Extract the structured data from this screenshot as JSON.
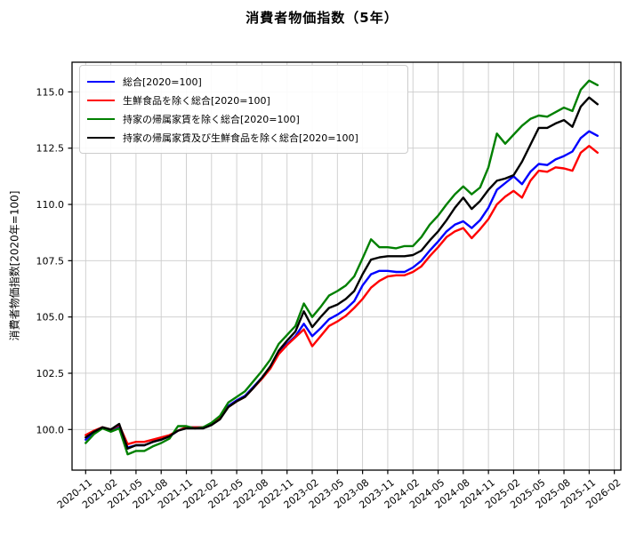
{
  "figure": {
    "title": "消費者物価指数（5年）"
  },
  "chart_data": {
    "type": "line",
    "title": "消費者物価指数（5年）",
    "xlabel": "",
    "ylabel": "消費者物価指数[2020年=100]",
    "grid": true,
    "legend_position": "upper left",
    "ylim": [
      98.2,
      116.3
    ],
    "yticks": [
      100.0,
      102.5,
      105.0,
      107.5,
      110.0,
      112.5,
      115.0
    ],
    "xticks": [
      "2020-11",
      "2021-02",
      "2021-05",
      "2021-08",
      "2021-11",
      "2022-02",
      "2022-05",
      "2022-08",
      "2022-11",
      "2023-02",
      "2023-05",
      "2023-08",
      "2023-11",
      "2024-02",
      "2024-05",
      "2024-08",
      "2024-11",
      "2025-02",
      "2025-05",
      "2025-08",
      "2025-11",
      "2026-02"
    ],
    "x": [
      "2020-11",
      "2020-12",
      "2021-01",
      "2021-02",
      "2021-03",
      "2021-04",
      "2021-05",
      "2021-06",
      "2021-07",
      "2021-08",
      "2021-09",
      "2021-10",
      "2021-11",
      "2021-12",
      "2022-01",
      "2022-02",
      "2022-03",
      "2022-04",
      "2022-05",
      "2022-06",
      "2022-07",
      "2022-08",
      "2022-09",
      "2022-10",
      "2022-11",
      "2022-12",
      "2023-01",
      "2023-02",
      "2023-03",
      "2023-04",
      "2023-05",
      "2023-06",
      "2023-07",
      "2023-08",
      "2023-09",
      "2023-10",
      "2023-11",
      "2023-12",
      "2024-01",
      "2024-02",
      "2024-03",
      "2024-04",
      "2024-05",
      "2024-06",
      "2024-07",
      "2024-08",
      "2024-09",
      "2024-10",
      "2024-11",
      "2024-12",
      "2025-01",
      "2025-02",
      "2025-03",
      "2025-04",
      "2025-05",
      "2025-06",
      "2025-07",
      "2025-08",
      "2025-09",
      "2025-10",
      "2025-11",
      "2025-12"
    ],
    "series": [
      {
        "name": "総合[2020=100]",
        "color": "#0000ff",
        "values": [
          99.55,
          99.9,
          100.1,
          99.95,
          100.15,
          99.2,
          99.3,
          99.3,
          99.45,
          99.55,
          99.7,
          99.95,
          100.1,
          100.1,
          100.1,
          100.25,
          100.5,
          101.05,
          101.3,
          101.5,
          101.9,
          102.3,
          102.75,
          103.4,
          103.8,
          104.15,
          104.7,
          104.15,
          104.5,
          104.9,
          105.1,
          105.35,
          105.7,
          106.4,
          106.9,
          107.05,
          107.05,
          107.0,
          107.0,
          107.2,
          107.5,
          107.95,
          108.35,
          108.8,
          109.1,
          109.25,
          108.95,
          109.3,
          109.85,
          110.65,
          110.95,
          111.25,
          110.9,
          111.45,
          111.8,
          111.75,
          112.0,
          112.15,
          112.35,
          112.95,
          113.25,
          113.05
        ]
      },
      {
        "name": "生鮮食品を除く総合[2020=100]",
        "color": "#ff0000",
        "values": [
          99.75,
          99.95,
          100.1,
          100.0,
          100.2,
          99.35,
          99.45,
          99.45,
          99.55,
          99.65,
          99.75,
          99.95,
          100.1,
          100.1,
          100.1,
          100.25,
          100.5,
          101.0,
          101.25,
          101.45,
          101.85,
          102.25,
          102.7,
          103.35,
          103.75,
          104.1,
          104.45,
          103.7,
          104.15,
          104.6,
          104.8,
          105.05,
          105.4,
          105.8,
          106.3,
          106.6,
          106.8,
          106.85,
          106.85,
          107.0,
          107.25,
          107.7,
          108.1,
          108.55,
          108.8,
          108.95,
          108.5,
          108.9,
          109.35,
          110.0,
          110.35,
          110.6,
          110.3,
          111.05,
          111.5,
          111.45,
          111.65,
          111.6,
          111.5,
          112.3,
          112.6,
          112.3
        ]
      },
      {
        "name": "持家の帰属家賃を除く総合[2020=100]",
        "color": "#008000",
        "values": [
          99.4,
          99.8,
          100.05,
          99.9,
          100.05,
          98.9,
          99.05,
          99.05,
          99.25,
          99.4,
          99.6,
          100.15,
          100.15,
          100.05,
          100.1,
          100.3,
          100.6,
          101.2,
          101.45,
          101.7,
          102.15,
          102.6,
          103.1,
          103.8,
          104.2,
          104.6,
          105.6,
          105.0,
          105.45,
          105.95,
          106.15,
          106.4,
          106.8,
          107.6,
          108.45,
          108.1,
          108.1,
          108.05,
          108.15,
          108.15,
          108.55,
          109.1,
          109.5,
          110.0,
          110.45,
          110.8,
          110.45,
          110.75,
          111.65,
          113.15,
          112.7,
          113.1,
          113.5,
          113.8,
          113.95,
          113.9,
          114.1,
          114.3,
          114.15,
          115.1,
          115.5,
          115.3
        ]
      },
      {
        "name": "持家の帰属家賃及び生鮮食品を除く総合[2020=100]",
        "color": "#000000",
        "values": [
          99.65,
          99.9,
          100.1,
          100.0,
          100.25,
          99.15,
          99.3,
          99.3,
          99.45,
          99.55,
          99.7,
          99.95,
          100.05,
          100.05,
          100.05,
          100.2,
          100.45,
          101.0,
          101.25,
          101.45,
          101.85,
          102.3,
          102.8,
          103.5,
          103.95,
          104.35,
          105.25,
          104.55,
          105.0,
          105.4,
          105.55,
          105.8,
          106.15,
          106.9,
          107.55,
          107.65,
          107.7,
          107.7,
          107.7,
          107.75,
          107.95,
          108.4,
          108.8,
          109.3,
          109.85,
          110.3,
          109.8,
          110.15,
          110.65,
          111.05,
          111.15,
          111.3,
          111.9,
          112.65,
          113.4,
          113.4,
          113.6,
          113.75,
          113.45,
          114.35,
          114.75,
          114.45
        ]
      }
    ]
  }
}
